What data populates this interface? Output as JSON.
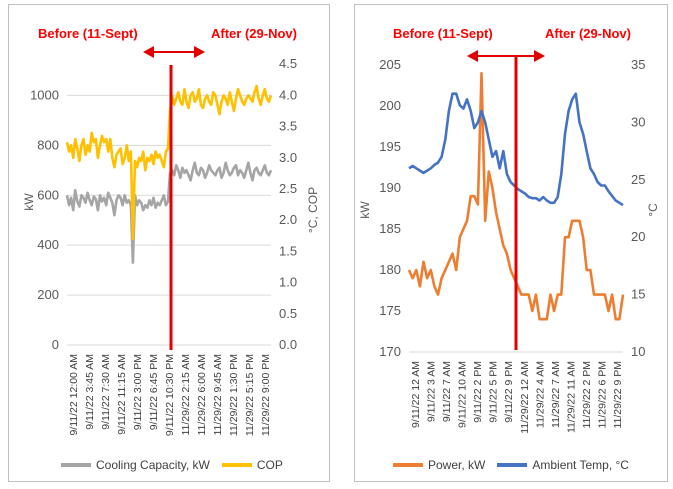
{
  "chart_data": [
    {
      "type": "line",
      "annotations": {
        "before": "Before (11-Sept)",
        "after": "After (29-Nov)"
      },
      "ylabel": "kW",
      "y2label": "°C, COP",
      "yticks": [
        "0",
        "200",
        "400",
        "600",
        "800",
        "1000"
      ],
      "y2ticks": [
        "0.0",
        "0.5",
        "1.0",
        "1.5",
        "2.0",
        "2.5",
        "3.0",
        "3.5",
        "4.0",
        "4.5"
      ],
      "ylim": [
        0,
        1150
      ],
      "y2lim": [
        0,
        4.6
      ],
      "x_tick_labels": [
        "9/11/22 12:00 AM",
        "9/11/22 3:45 AM",
        "9/11/22 7:30 AM",
        "9/11/22 11:15 AM",
        "9/11/22 3:00 PM",
        "9/11/22 6:45 PM",
        "9/11/22 10:30 PM",
        "11/29/22 2:15 AM",
        "11/29/22 6:00 AM",
        "11/29/22 9:45 AM",
        "11/29/22 1:30 PM",
        "11/29/22 5:15 PM",
        "11/29/22 9:00 PM"
      ],
      "grid": true,
      "legend_position": "bottom",
      "series": [
        {
          "name": "Cooling Capacity, kW",
          "axis": "left",
          "color": "#a5a5a5",
          "values": [
            600,
            560,
            590,
            540,
            620,
            575,
            555,
            600,
            590,
            570,
            610,
            580,
            560,
            595,
            585,
            540,
            600,
            575,
            590,
            560,
            610,
            590,
            570,
            520,
            580,
            600,
            590,
            560,
            600,
            570,
            580,
            560,
            330,
            600,
            560,
            580,
            570,
            540,
            560,
            550,
            580,
            560,
            590,
            550,
            570,
            560,
            580,
            600,
            560,
            575,
            690,
            700,
            680,
            720,
            700,
            670,
            710,
            690,
            700,
            680,
            660,
            700,
            730,
            690,
            680,
            710,
            700,
            670,
            690,
            720,
            700,
            690,
            680,
            700,
            710,
            670,
            690,
            730,
            700,
            680,
            690,
            710,
            720,
            680,
            700,
            690,
            670,
            700,
            730,
            690,
            660,
            700,
            710,
            690,
            680,
            700,
            720,
            690,
            680,
            700
          ]
        },
        {
          "name": "COP",
          "axis": "right",
          "color": "#ffc000",
          "values": [
            3.25,
            3.1,
            3.2,
            3.0,
            3.3,
            3.15,
            2.95,
            3.2,
            3.3,
            3.05,
            3.2,
            3.1,
            3.4,
            3.25,
            3.3,
            3.0,
            3.2,
            3.35,
            3.25,
            3.3,
            3.1,
            3.3,
            3.0,
            2.85,
            3.05,
            3.1,
            3.15,
            2.9,
            3.0,
            3.2,
            2.95,
            3.1,
            1.7,
            2.95,
            2.85,
            3.0,
            2.95,
            3.1,
            2.8,
            3.0,
            2.95,
            3.05,
            2.9,
            3.1,
            3.0,
            3.05,
            2.95,
            2.85,
            3.1,
            3.15,
            3.75,
            4.0,
            3.85,
            3.95,
            4.05,
            3.9,
            3.85,
            4.1,
            3.9,
            3.8,
            4.0,
            4.05,
            3.9,
            3.95,
            4.1,
            3.85,
            3.8,
            3.95,
            4.0,
            3.9,
            3.85,
            4.05,
            4.0,
            3.85,
            3.7,
            3.9,
            4.0,
            3.95,
            3.85,
            4.05,
            3.9,
            3.75,
            3.95,
            4.1,
            4.0,
            3.9,
            3.85,
            3.95,
            4.0,
            3.95,
            3.9,
            4.05,
            4.15,
            3.95,
            3.85,
            4.0,
            4.1,
            3.95,
            3.9,
            4.0
          ]
        }
      ]
    },
    {
      "type": "line",
      "annotations": {
        "before": "Before (11-Sept)",
        "after": "After (29-Nov)"
      },
      "ylabel": "kW",
      "y2label": "°C",
      "yticks": [
        "170",
        "175",
        "180",
        "185",
        "190",
        "195",
        "200",
        "205"
      ],
      "y2ticks": [
        "10",
        "15",
        "20",
        "25",
        "30",
        "35"
      ],
      "ylim": [
        170,
        205
      ],
      "y2lim": [
        10,
        35
      ],
      "x_tick_labels": [
        "9/11/22 12 AM",
        "9/11/22 3 AM",
        "9/11/22 7 AM",
        "9/11/22 10 AM",
        "9/11/22 2 PM",
        "9/11/22 5 PM",
        "9/11/22 9 PM",
        "11/29/22 12 AM",
        "11/29/22 4 AM",
        "11/29/22 7 AM",
        "11/29/22 11 AM",
        "11/29/22 2 PM",
        "11/29/22 6 PM",
        "11/29/22 9 PM"
      ],
      "grid": false,
      "legend_position": "bottom",
      "series": [
        {
          "name": "Power, kW",
          "axis": "left",
          "color": "#ed7d31",
          "values": [
            180,
            179,
            180,
            178,
            181,
            179,
            180,
            178,
            177,
            179,
            180,
            181,
            182,
            180,
            184,
            185,
            186,
            189,
            189,
            188,
            204,
            186,
            192,
            190,
            187,
            185,
            183,
            182,
            180,
            179,
            178,
            177,
            177,
            177,
            175,
            177,
            174,
            174,
            174,
            177,
            175,
            177,
            177,
            184,
            184,
            186,
            186,
            186,
            184,
            180,
            180,
            177,
            177,
            177,
            177,
            175,
            177,
            174,
            174,
            177
          ]
        },
        {
          "name": "Ambient Temp, °C",
          "axis": "right",
          "color": "#4472c4",
          "values": [
            26,
            26.2,
            26,
            25.8,
            25.6,
            25.8,
            26,
            26.3,
            26.5,
            27,
            28.5,
            31,
            32.5,
            32.5,
            31.5,
            31.2,
            32,
            31,
            29.5,
            30,
            31,
            30,
            28.5,
            27,
            27.5,
            26,
            27.5,
            25.5,
            24.8,
            24.5,
            24.2,
            24,
            23.8,
            23.5,
            23.4,
            23.4,
            23.2,
            23.5,
            23.2,
            23,
            23,
            23.5,
            25.5,
            29,
            31,
            32,
            32.5,
            30,
            29,
            27.5,
            26,
            25.5,
            24.8,
            24.5,
            24.5,
            24,
            23.6,
            23.2,
            23,
            22.8
          ]
        }
      ]
    }
  ]
}
